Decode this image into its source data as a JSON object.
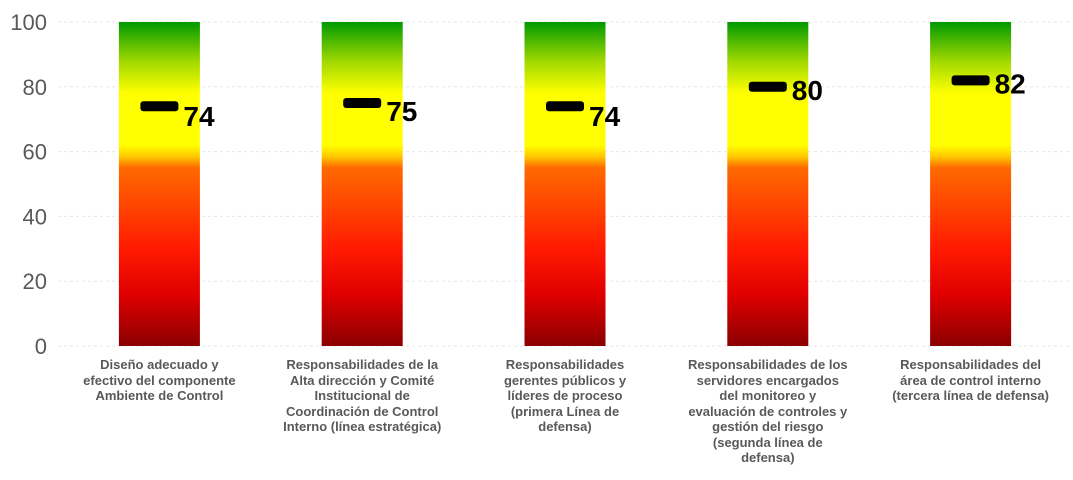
{
  "chart_data": {
    "type": "bar",
    "categories": [
      "Diseño adecuado y efectivo del componente Ambiente de Control",
      "Responsabilidades de la Alta dirección y Comité Institucional de Coordinación de Control Interno (línea estratégica)",
      "Responsabilidades gerentes públicos y líderes de proceso (primera Línea de defensa)",
      "Responsabilidades de los servidores encargados del monitoreo y evaluación de controles y gestión del riesgo (segunda línea de defensa)",
      "Responsabilidades del área de control interno (tercera línea de defensa)"
    ],
    "category_label_lines": [
      [
        "Diseño adecuado y",
        "efectivo del componente",
        "Ambiente de Control"
      ],
      [
        "Responsabilidades de la",
        "Alta dirección y Comité",
        "Institucional de",
        "Coordinación de Control",
        "Interno (línea estratégica)"
      ],
      [
        "Responsabilidades",
        "gerentes públicos y",
        "líderes de proceso",
        "(primera Línea de",
        "defensa)"
      ],
      [
        "Responsabilidades de los",
        "servidores encargados",
        "del monitoreo y",
        "evaluación de controles y",
        "gestión del riesgo",
        "(segunda línea de",
        "defensa)"
      ],
      [
        "Responsabilidades del",
        "área de control interno",
        "(tercera línea de defensa)"
      ]
    ],
    "values": [
      74,
      75,
      74,
      80,
      82
    ],
    "data_labels": [
      "74",
      "75",
      "74",
      "80",
      "82"
    ],
    "band_range": [
      0,
      100
    ],
    "ylim": [
      0,
      100
    ],
    "yticks": [
      0,
      20,
      40,
      60,
      80,
      100
    ],
    "ytick_labels": [
      "0",
      "20",
      "40",
      "60",
      "80",
      "100"
    ],
    "grid": true,
    "legend": "none",
    "gradient_colors": [
      "#8b0000",
      "#ff0000",
      "#ff5500",
      "#ffff00",
      "#009900"
    ],
    "marker_color": "#000000",
    "title": "",
    "xlabel": "",
    "ylabel": ""
  }
}
